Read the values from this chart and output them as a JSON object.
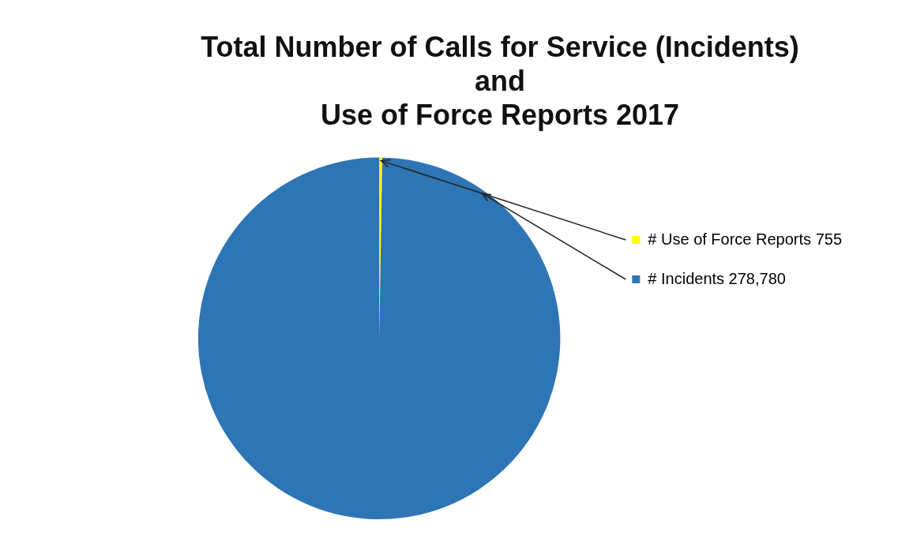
{
  "chart_data": {
    "type": "pie",
    "title": "Total Number of Calls for Service (Incidents)\nand\nUse of Force Reports 2017",
    "categories": [
      "# Use of Force Reports",
      "# Incidents"
    ],
    "values": [
      755,
      278780
    ],
    "value_labels": [
      "755",
      "278,780"
    ],
    "colors": [
      "#ffff00",
      "#2e75b6"
    ],
    "legend": "right"
  }
}
